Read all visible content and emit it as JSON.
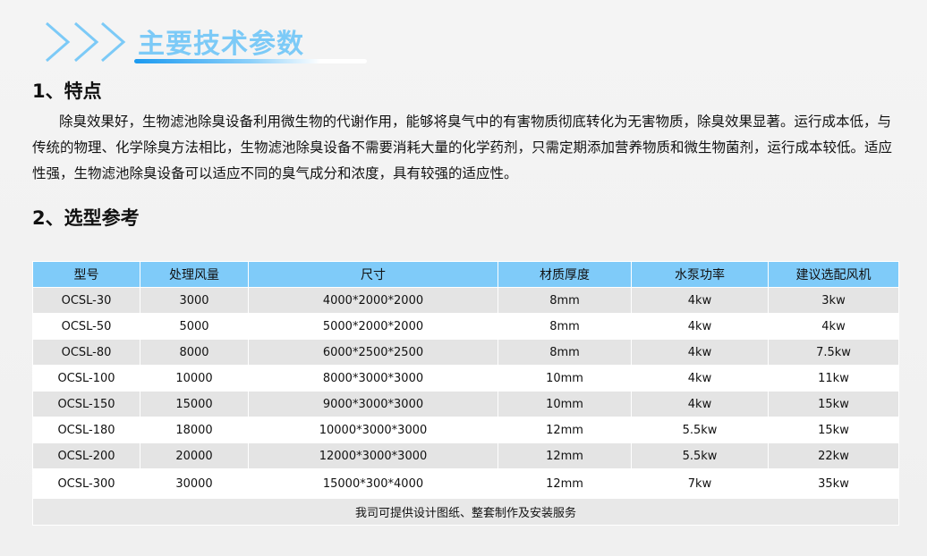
{
  "section_title": "主要技术参数",
  "headings": [
    "1、特点",
    "2、选型参考"
  ],
  "features_text": "除臭效果好，生物滤池除臭设备利用微生物的代谢作用，能够将臭气中的有害物质彻底转化为无害物质，除臭效果显著。运行成本低，与传统的物理、化学除臭方法相比，生物滤池除臭设备不需要消耗大量的化学药剂，只需定期添加营养物质和微生物菌剂，运行成本较低。适应性强，生物滤池除臭设备可以适应不同的臭气成分和浓度，具有较强的适应性。",
  "table": {
    "headers": [
      "型号",
      "处理风量",
      "尺寸",
      "材质厚度",
      "水泵功率",
      "建议选配风机"
    ],
    "rows": [
      [
        "OCSL-30",
        "3000",
        "4000*2000*2000",
        "8mm",
        "4kw",
        "3kw"
      ],
      [
        "OCSL-50",
        "5000",
        "5000*2000*2000",
        "8mm",
        "4kw",
        "4kw"
      ],
      [
        "OCSL-80",
        "8000",
        "6000*2500*2500",
        "8mm",
        "4kw",
        "7.5kw"
      ],
      [
        "OCSL-100",
        "10000",
        "8000*3000*3000",
        "10mm",
        "4kw",
        "11kw"
      ],
      [
        "OCSL-150",
        "15000",
        "9000*3000*3000",
        "10mm",
        "4kw",
        "15kw"
      ],
      [
        "OCSL-180",
        "18000",
        "10000*3000*3000",
        "12mm",
        "5.5kw",
        "15kw"
      ],
      [
        "OCSL-200",
        "20000",
        "12000*3000*3000",
        "12mm",
        "5.5kw",
        "22kw"
      ],
      [
        "OCSL-300",
        "30000",
        "15000*300*4000",
        "12mm",
        "7kw",
        "35kw"
      ]
    ],
    "footer": "我司可提供设计图纸、整套制作及安装服务"
  },
  "colors": {
    "accent": "#7fcbf9",
    "title": "#7ccaf7"
  }
}
